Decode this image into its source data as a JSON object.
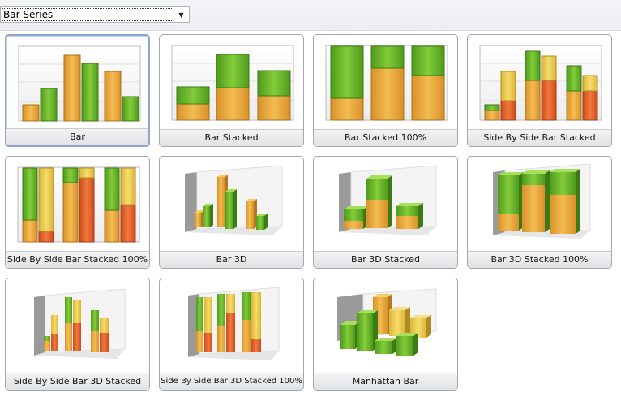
{
  "toolbar": {
    "combo_value": "Bar Series",
    "combo_icon": "chevron-down-icon"
  },
  "gallery": {
    "items": [
      {
        "label": "Bar"
      },
      {
        "label": "Bar Stacked"
      },
      {
        "label": "Bar Stacked 100%"
      },
      {
        "label": "Side By Side Bar Stacked"
      },
      {
        "label": "Side By Side Bar Stacked 100%"
      },
      {
        "label": "Bar 3D"
      },
      {
        "label": "Bar 3D Stacked"
      },
      {
        "label": "Bar 3D Stacked 100%"
      },
      {
        "label": "Side By Side Bar 3D Stacked"
      },
      {
        "label": "Side By Side Bar 3D Stacked 100%"
      },
      {
        "label": "Manhattan Bar"
      }
    ],
    "colors": {
      "orange": "#e8a534",
      "green": "#66b22a",
      "yellow": "#ecc94a",
      "red": "#e0572a"
    }
  }
}
